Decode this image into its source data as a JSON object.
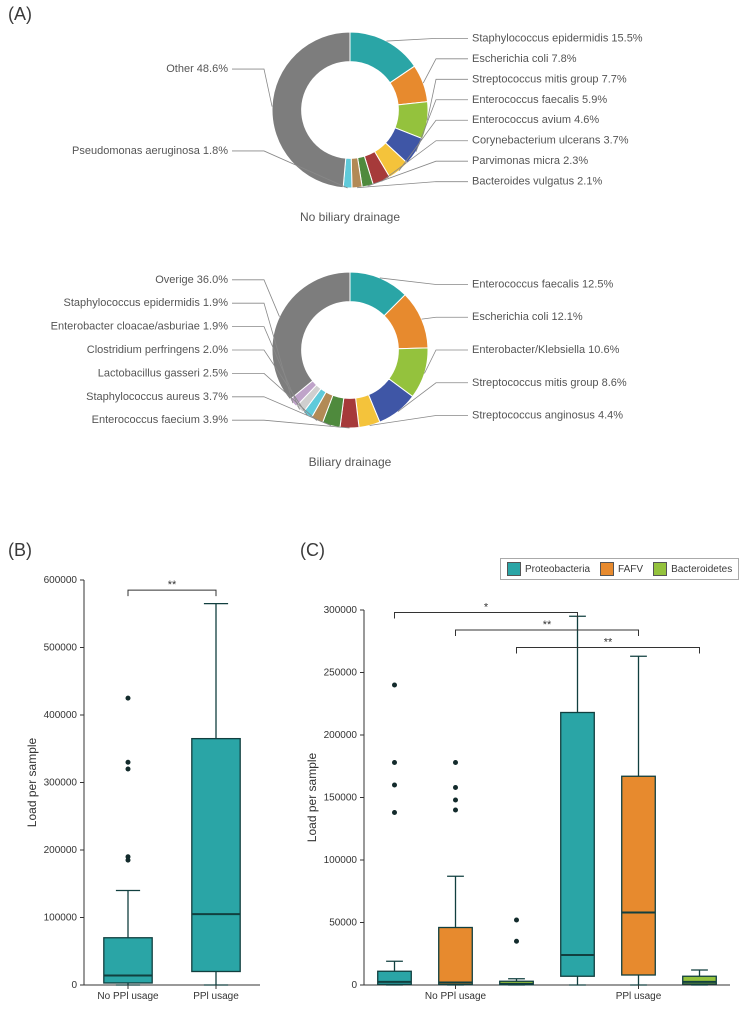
{
  "panelA": {
    "label": "(A)",
    "donut1": {
      "caption": "No biliary drainage",
      "inner_ratio": 0.62,
      "slices": [
        {
          "name": "Staphylococcus epidermidis",
          "value": 15.5,
          "color": "#2aa5a6",
          "side": "right",
          "label": "Staphylococcus epidermidis 15.5%"
        },
        {
          "name": "Escherichia coli",
          "value": 7.8,
          "color": "#e78a2e",
          "side": "right",
          "label": "Escherichia coli 7.8%"
        },
        {
          "name": "Streptococcus mitis group",
          "value": 7.7,
          "color": "#94c23d",
          "side": "right",
          "label": "Streptococcus mitis group 7.7%"
        },
        {
          "name": "Enterococcus faecalis",
          "value": 5.9,
          "color": "#3f56a6",
          "side": "right",
          "label": "Enterococcus faecalis 5.9%"
        },
        {
          "name": "Enterococcus avium",
          "value": 4.6,
          "color": "#f4c33b",
          "side": "right",
          "label": "Enterococcus avium 4.6%"
        },
        {
          "name": "Corynebacterium ulcerans",
          "value": 3.7,
          "color": "#a63a3a",
          "side": "right",
          "label": "Corynebacterium ulcerans 3.7%"
        },
        {
          "name": "Parvimonas micra",
          "value": 2.3,
          "color": "#4f8a3d",
          "side": "right",
          "label": "Parvimonas micra 2.3%"
        },
        {
          "name": "Bacteroides vulgatus",
          "value": 2.1,
          "color": "#b28a56",
          "side": "right",
          "label": "Bacteroides vulgatus 2.1%"
        },
        {
          "name": "Pseudomonas aeruginosa",
          "value": 1.8,
          "color": "#5fcada",
          "side": "left",
          "label": "Pseudomonas aeruginosa 1.8%"
        },
        {
          "name": "Other",
          "value": 48.6,
          "color": "#7d7d7d",
          "side": "left",
          "label": "Other 48.6%"
        }
      ]
    },
    "donut2": {
      "caption": "Biliary drainage",
      "inner_ratio": 0.62,
      "slices": [
        {
          "name": "Enterococcus faecalis",
          "value": 12.5,
          "color": "#2aa5a6",
          "side": "right",
          "label": "Enterococcus faecalis 12.5%"
        },
        {
          "name": "Escherichia coli",
          "value": 12.1,
          "color": "#e78a2e",
          "side": "right",
          "label": "Escherichia coli 12.1%"
        },
        {
          "name": "Enterobacter/Klebsiella",
          "value": 10.6,
          "color": "#94c23d",
          "side": "right",
          "label": "Enterobacter/Klebsiella 10.6%"
        },
        {
          "name": "Streptococcus mitis group",
          "value": 8.6,
          "color": "#3f56a6",
          "side": "right",
          "label": "Streptococcus mitis group 8.6%"
        },
        {
          "name": "Streptococcus anginosus",
          "value": 4.4,
          "color": "#f4c33b",
          "side": "right",
          "label": "Streptococcus anginosus 4.4%"
        },
        {
          "name": "Enterococcus faecium",
          "value": 3.9,
          "color": "#a63a3a",
          "side": "left",
          "label": "Enterococcus faecium 3.9%"
        },
        {
          "name": "Staphylococcus aureus",
          "value": 3.7,
          "color": "#4f8a3d",
          "side": "left",
          "label": "Staphylococcus aureus 3.7%"
        },
        {
          "name": "Lactobacillus gasseri",
          "value": 2.5,
          "color": "#b28a56",
          "side": "left",
          "label": "Lactobacillus gasseri 2.5%"
        },
        {
          "name": "Clostridium perfringens",
          "value": 2.0,
          "color": "#5fcada",
          "side": "left",
          "label": "Clostridium perfringens 2.0%"
        },
        {
          "name": "Enterobacter cloacae/asburiae",
          "value": 1.9,
          "color": "#cfcfcf",
          "side": "left",
          "label": "Enterobacter cloacae/asburiae 1.9%"
        },
        {
          "name": "Staphylococcus epidermidis",
          "value": 1.9,
          "color": "#bfa3c9",
          "side": "left",
          "label": "Staphylococcus epidermidis 1.9%"
        },
        {
          "name": "Overige",
          "value": 36.0,
          "color": "#7d7d7d",
          "side": "left",
          "label": "Overige 36.0%"
        }
      ]
    }
  },
  "panelB": {
    "label": "(B)",
    "ylabel": "Load per sample",
    "ymax": 600000,
    "ytick_step": 100000,
    "categories": [
      "No PPl usage",
      "PPl usage"
    ],
    "sig": {
      "from": 0,
      "to": 1,
      "text": "**",
      "y": 585000
    },
    "box_color": "#2aa5a6",
    "box_edge": "#113f3f",
    "boxes": [
      {
        "q1": 3000,
        "median": 14000,
        "q3": 70000,
        "whisker_lo": 0,
        "whisker_hi": 140000,
        "outliers": [
          185000,
          190000,
          320000,
          330000,
          425000
        ]
      },
      {
        "q1": 20000,
        "median": 105000,
        "q3": 365000,
        "whisker_lo": 0,
        "whisker_hi": 565000,
        "outliers": []
      }
    ]
  },
  "panelC": {
    "label": "(C)",
    "ylabel": "Load per sample",
    "ymax": 300000,
    "ytick_step": 50000,
    "groups": [
      "No PPl usage",
      "PPl usage"
    ],
    "series": [
      {
        "name": "Proteobacteria",
        "color": "#2aa5a6"
      },
      {
        "name": "FAFV",
        "color": "#e78a2e"
      },
      {
        "name": "Bacteroidetes",
        "color": "#94c23d"
      }
    ],
    "sig": [
      {
        "from": 0,
        "to": 3,
        "text": "*",
        "y": 298000
      },
      {
        "from": 1,
        "to": 4,
        "text": "**",
        "y": 284000
      },
      {
        "from": 2,
        "to": 5,
        "text": "**",
        "y": 270000
      }
    ],
    "box_edge": "#113f3f",
    "boxes": [
      {
        "q1": 500,
        "median": 2500,
        "q3": 11000,
        "whisker_lo": 0,
        "whisker_hi": 19000,
        "outliers": [
          138000,
          160000,
          178000,
          240000
        ]
      },
      {
        "q1": 400,
        "median": 2000,
        "q3": 46000,
        "whisker_lo": 0,
        "whisker_hi": 87000,
        "outliers": [
          140000,
          148000,
          158000,
          178000
        ]
      },
      {
        "q1": 200,
        "median": 900,
        "q3": 3000,
        "whisker_lo": 0,
        "whisker_hi": 5000,
        "outliers": [
          35000,
          52000
        ]
      },
      {
        "q1": 7000,
        "median": 24000,
        "q3": 218000,
        "whisker_lo": 0,
        "whisker_hi": 295000,
        "outliers": []
      },
      {
        "q1": 8000,
        "median": 58000,
        "q3": 167000,
        "whisker_lo": 0,
        "whisker_hi": 263000,
        "outliers": []
      },
      {
        "q1": 800,
        "median": 2500,
        "q3": 7000,
        "whisker_lo": 0,
        "whisker_hi": 12000,
        "outliers": []
      }
    ]
  }
}
